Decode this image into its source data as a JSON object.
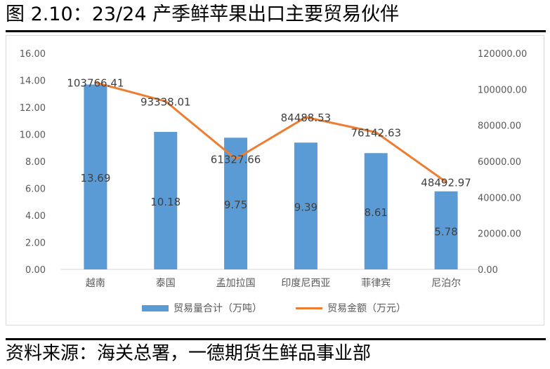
{
  "title": "图 2.10：23/24 产季鲜苹果出口主要贸易伙伴",
  "source": "资料来源：海关总署，一德期货生鲜品事业部",
  "chart_data": {
    "type": "bar+line",
    "categories": [
      "越南",
      "泰国",
      "孟加拉国",
      "印度尼西亚",
      "菲律宾",
      "尼泊尔"
    ],
    "series": [
      {
        "name": "贸易量合计（万吨）",
        "type": "bar",
        "axis": "left",
        "color": "#5b9bd5",
        "values": [
          13.69,
          10.18,
          9.75,
          9.39,
          8.61,
          5.78
        ],
        "labels": [
          "13.69",
          "10.18",
          "9.75",
          "9.39",
          "8.61",
          "5.78"
        ]
      },
      {
        "name": "贸易金额（万元）",
        "type": "line",
        "axis": "right",
        "color": "#ed7d31",
        "values": [
          103766.41,
          93338.01,
          61327.66,
          84488.53,
          76142.63,
          48492.97
        ],
        "labels": [
          "103766.41",
          "93338.01",
          "61327.66",
          "84488.53",
          "76142.63",
          "48492.97"
        ]
      }
    ],
    "y_left": {
      "range": [
        0,
        16
      ],
      "ticks": [
        "0.00",
        "2.00",
        "4.00",
        "6.00",
        "8.00",
        "10.00",
        "12.00",
        "14.00",
        "16.00"
      ]
    },
    "y_right": {
      "range": [
        0,
        120000
      ],
      "ticks": [
        "0.00",
        "20000.00",
        "40000.00",
        "60000.00",
        "80000.00",
        "100000.00",
        "120000.00"
      ]
    },
    "grid": false,
    "legend": "bottom"
  }
}
